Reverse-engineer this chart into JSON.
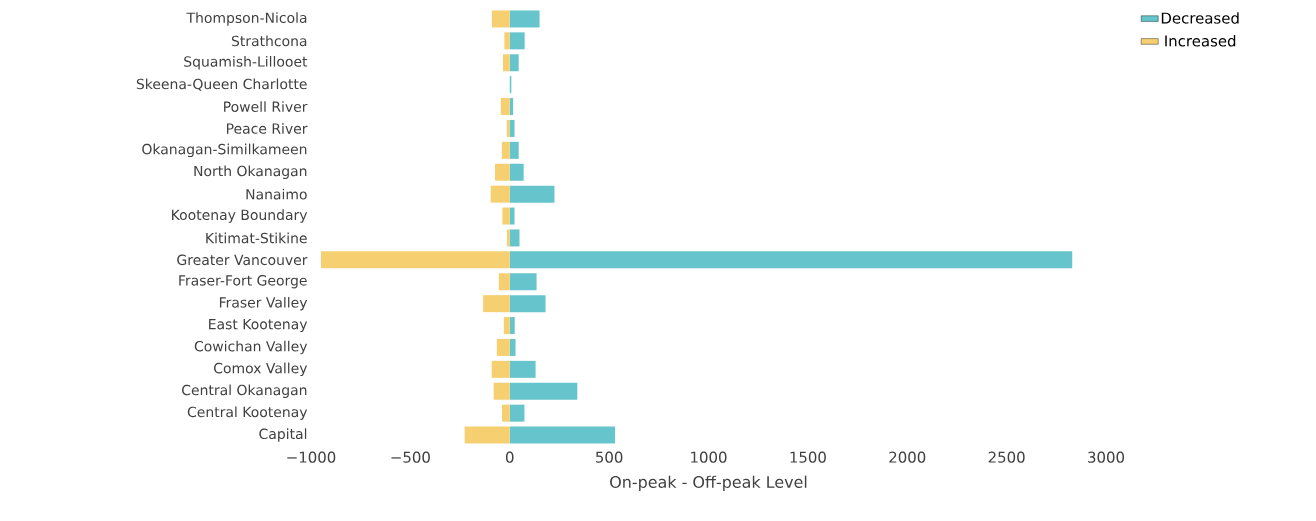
{
  "chart_data": {
    "type": "bar",
    "orientation": "horizontal",
    "stacked": true,
    "xlabel": "On-peak - Off-peak Level",
    "categories": [
      "Thompson-Nicola",
      "Strathcona",
      "Squamish-Lillooet",
      "Skeena-Queen Charlotte",
      "Powell River",
      "Peace River",
      "Okanagan-Similkameen",
      "North Okanagan",
      "Nanaimo",
      "Kootenay Boundary",
      "Kitimat-Stikine",
      "Greater Vancouver",
      "Fraser-Fort George",
      "Fraser Valley",
      "East Kootenay",
      "Cowichan Valley",
      "Comox Valley",
      "Central Okanagan",
      "Central Kootenay",
      "Capital"
    ],
    "series": [
      {
        "name": "Decreased",
        "color": "#66c5cc",
        "values": [
          150,
          75,
          45,
          8,
          17,
          24,
          45,
          70,
          225,
          24,
          49,
          2830,
          135,
          180,
          25,
          29,
          130,
          340,
          74,
          530
        ]
      },
      {
        "name": "Increased",
        "color": "#f6cf71",
        "values": [
          -90,
          -27,
          -34,
          0,
          -45,
          -15,
          -40,
          -74,
          -96,
          -37,
          -14,
          -950,
          -55,
          -134,
          -30,
          -65,
          -91,
          -81,
          -39,
          -227
        ]
      }
    ],
    "xlim": [
      -1000,
      3000
    ],
    "xticks": [
      {
        "value": -1000,
        "label": "−1000"
      },
      {
        "value": -500,
        "label": "−500"
      },
      0,
      500,
      1000,
      1500,
      2000,
      2500,
      3000
    ],
    "legend": "top right"
  }
}
